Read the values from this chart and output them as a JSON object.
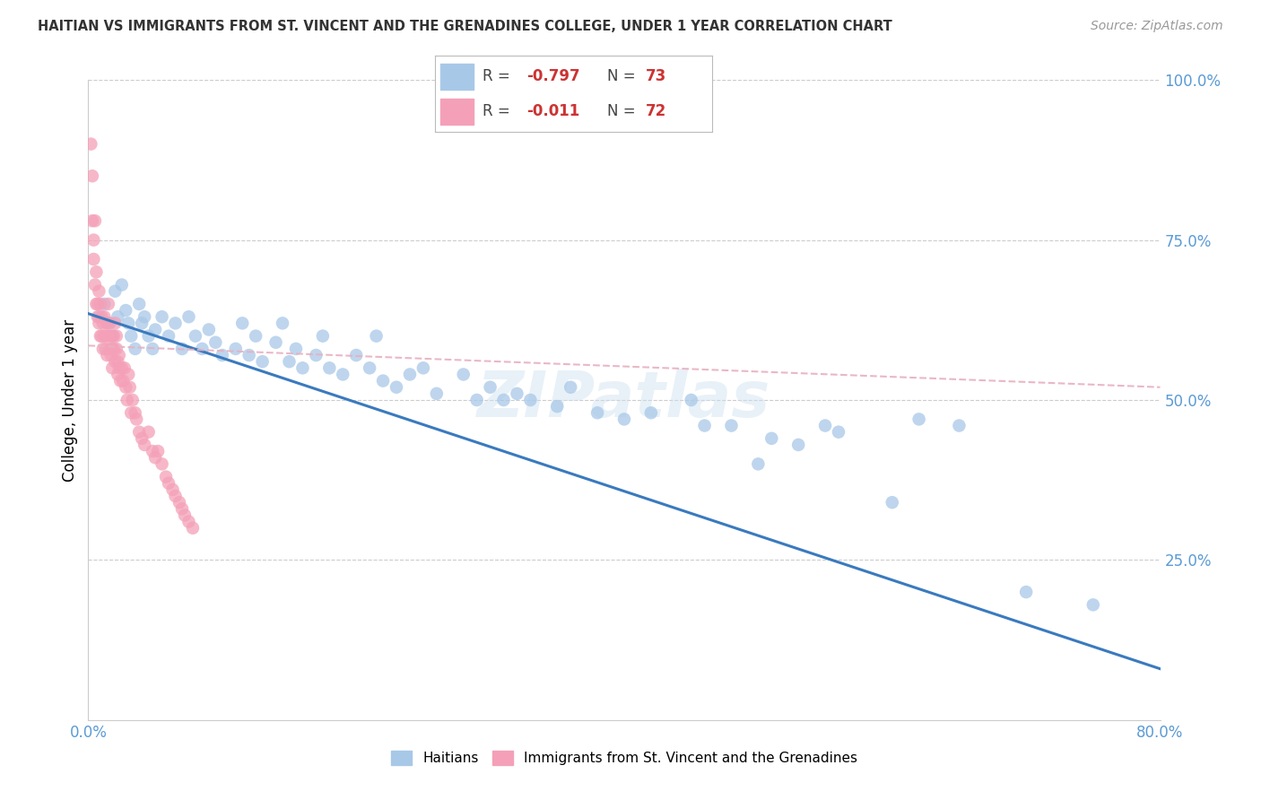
{
  "title": "HAITIAN VS IMMIGRANTS FROM ST. VINCENT AND THE GRENADINES COLLEGE, UNDER 1 YEAR CORRELATION CHART",
  "source": "Source: ZipAtlas.com",
  "ylabel": "College, Under 1 year",
  "blue_scatter_color": "#a8c8e8",
  "pink_scatter_color": "#f4a0b8",
  "blue_line_color": "#3a7abf",
  "pink_line_color": "#e8b0c0",
  "watermark": "ZIPatlas",
  "xlim": [
    0.0,
    0.8
  ],
  "ylim": [
    0.0,
    1.0
  ],
  "blue_line_x0": 0.0,
  "blue_line_y0": 0.635,
  "blue_line_x1": 0.8,
  "blue_line_y1": 0.08,
  "pink_line_x0": 0.0,
  "pink_line_y0": 0.585,
  "pink_line_x1": 0.8,
  "pink_line_y1": 0.52,
  "blue_points_x": [
    0.008,
    0.012,
    0.015,
    0.018,
    0.02,
    0.022,
    0.025,
    0.028,
    0.03,
    0.032,
    0.035,
    0.038,
    0.04,
    0.042,
    0.045,
    0.048,
    0.05,
    0.055,
    0.06,
    0.065,
    0.07,
    0.075,
    0.08,
    0.085,
    0.09,
    0.095,
    0.1,
    0.11,
    0.115,
    0.12,
    0.125,
    0.13,
    0.14,
    0.145,
    0.15,
    0.155,
    0.16,
    0.17,
    0.175,
    0.18,
    0.19,
    0.2,
    0.21,
    0.215,
    0.22,
    0.23,
    0.24,
    0.25,
    0.26,
    0.28,
    0.29,
    0.3,
    0.31,
    0.32,
    0.33,
    0.35,
    0.36,
    0.38,
    0.4,
    0.42,
    0.45,
    0.46,
    0.48,
    0.5,
    0.51,
    0.53,
    0.55,
    0.56,
    0.6,
    0.62,
    0.65,
    0.7,
    0.75
  ],
  "blue_points_y": [
    0.63,
    0.65,
    0.62,
    0.6,
    0.67,
    0.63,
    0.68,
    0.64,
    0.62,
    0.6,
    0.58,
    0.65,
    0.62,
    0.63,
    0.6,
    0.58,
    0.61,
    0.63,
    0.6,
    0.62,
    0.58,
    0.63,
    0.6,
    0.58,
    0.61,
    0.59,
    0.57,
    0.58,
    0.62,
    0.57,
    0.6,
    0.56,
    0.59,
    0.62,
    0.56,
    0.58,
    0.55,
    0.57,
    0.6,
    0.55,
    0.54,
    0.57,
    0.55,
    0.6,
    0.53,
    0.52,
    0.54,
    0.55,
    0.51,
    0.54,
    0.5,
    0.52,
    0.5,
    0.51,
    0.5,
    0.49,
    0.52,
    0.48,
    0.47,
    0.48,
    0.5,
    0.46,
    0.46,
    0.4,
    0.44,
    0.43,
    0.46,
    0.45,
    0.34,
    0.47,
    0.46,
    0.2,
    0.18
  ],
  "pink_points_x": [
    0.002,
    0.003,
    0.003,
    0.004,
    0.004,
    0.005,
    0.005,
    0.006,
    0.006,
    0.007,
    0.007,
    0.008,
    0.008,
    0.009,
    0.009,
    0.01,
    0.01,
    0.011,
    0.011,
    0.012,
    0.012,
    0.013,
    0.013,
    0.014,
    0.014,
    0.015,
    0.015,
    0.016,
    0.016,
    0.017,
    0.017,
    0.018,
    0.018,
    0.019,
    0.019,
    0.02,
    0.02,
    0.021,
    0.021,
    0.022,
    0.022,
    0.023,
    0.023,
    0.024,
    0.025,
    0.026,
    0.027,
    0.028,
    0.029,
    0.03,
    0.031,
    0.032,
    0.033,
    0.035,
    0.036,
    0.038,
    0.04,
    0.042,
    0.045,
    0.048,
    0.05,
    0.052,
    0.055,
    0.058,
    0.06,
    0.063,
    0.065,
    0.068,
    0.07,
    0.072,
    0.075,
    0.078
  ],
  "pink_points_y": [
    0.9,
    0.85,
    0.78,
    0.75,
    0.72,
    0.78,
    0.68,
    0.65,
    0.7,
    0.65,
    0.63,
    0.67,
    0.62,
    0.65,
    0.6,
    0.63,
    0.6,
    0.62,
    0.58,
    0.6,
    0.63,
    0.6,
    0.58,
    0.62,
    0.57,
    0.6,
    0.65,
    0.58,
    0.62,
    0.6,
    0.57,
    0.58,
    0.55,
    0.6,
    0.58,
    0.56,
    0.62,
    0.6,
    0.58,
    0.56,
    0.54,
    0.57,
    0.55,
    0.53,
    0.55,
    0.53,
    0.55,
    0.52,
    0.5,
    0.54,
    0.52,
    0.48,
    0.5,
    0.48,
    0.47,
    0.45,
    0.44,
    0.43,
    0.45,
    0.42,
    0.41,
    0.42,
    0.4,
    0.38,
    0.37,
    0.36,
    0.35,
    0.34,
    0.33,
    0.32,
    0.31,
    0.3
  ]
}
